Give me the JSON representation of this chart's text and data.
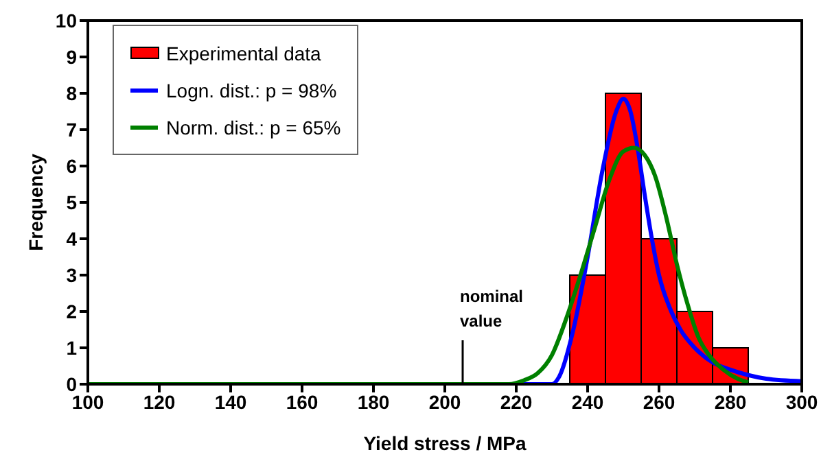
{
  "chart_data": {
    "type": "histogram",
    "xlabel": "Yield stress / MPa",
    "ylabel": "Frequency",
    "xlim": [
      100,
      300
    ],
    "xticks": [
      100,
      120,
      140,
      160,
      180,
      200,
      220,
      240,
      260,
      280,
      300
    ],
    "ylim": [
      0,
      10
    ],
    "yticks": [
      0,
      1,
      2,
      3,
      4,
      5,
      6,
      7,
      8,
      9,
      10
    ],
    "legend": "top left",
    "annotations": [
      {
        "text": "nominal value",
        "x": 205,
        "y": 0
      }
    ],
    "series": [
      {
        "name": "Experimental data",
        "color": "#ff0000",
        "bins": [
          235,
          245,
          255,
          265,
          275,
          285
        ],
        "values": [
          3,
          8,
          4,
          2,
          1
        ]
      },
      {
        "name": "Logn. dist.: p = 98%",
        "type": "line",
        "color": "#0000ff",
        "x": [
          100,
          230,
          232,
          236,
          240,
          244,
          248,
          250,
          252,
          254,
          256,
          258,
          260,
          263,
          266,
          270,
          275,
          280,
          285,
          290,
          300
        ],
        "values": [
          0,
          0,
          0.2,
          1.5,
          3.5,
          5.8,
          7.5,
          7.85,
          7.5,
          6.5,
          5.2,
          4.0,
          3.0,
          2.1,
          1.5,
          1.0,
          0.6,
          0.4,
          0.25,
          0.15,
          0.08
        ]
      },
      {
        "name": "Norm. dist.: p = 65%",
        "type": "line",
        "color": "#008000",
        "x": [
          100,
          218,
          222,
          226,
          230,
          234,
          238,
          242,
          246,
          250,
          253,
          256,
          259,
          262,
          265,
          268,
          271,
          274,
          278,
          282,
          285
        ],
        "values": [
          0,
          0,
          0.1,
          0.3,
          0.8,
          1.8,
          3.0,
          4.3,
          5.6,
          6.4,
          6.5,
          6.3,
          5.7,
          4.6,
          3.3,
          2.2,
          1.3,
          0.8,
          0.4,
          0.15,
          0.05
        ]
      }
    ]
  }
}
